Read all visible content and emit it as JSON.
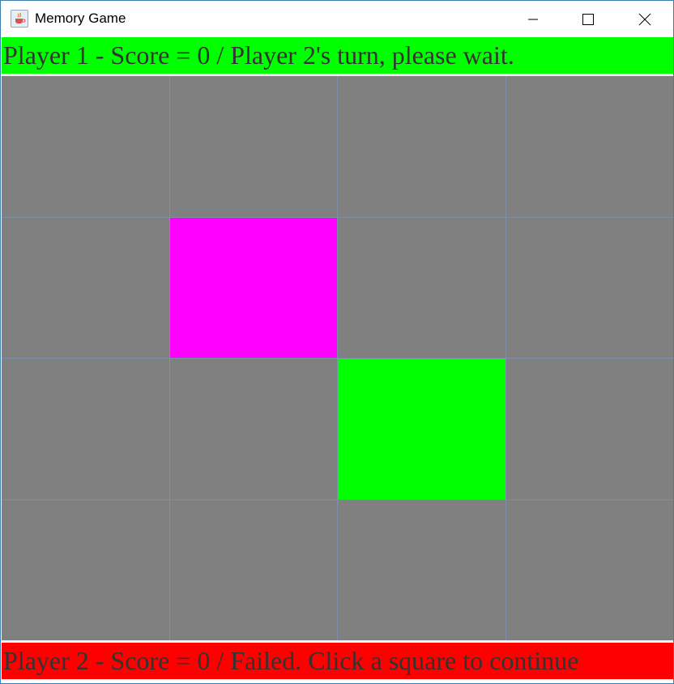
{
  "window": {
    "title": "Memory Game",
    "icon": "java-cup-icon",
    "controls": [
      "minimize-icon",
      "maximize-icon",
      "close-icon"
    ]
  },
  "status": {
    "top": "Player 1 - Score = 0 / Player 2's turn, please wait.",
    "bottom": "Player 2 - Score = 0 / Failed. Click a square to continue",
    "top_color": "#00ff00",
    "bottom_color": "#ff0000"
  },
  "board": {
    "rows": 4,
    "cols": 4,
    "hidden_color": "#808080",
    "grid_line_color": "#7f8fa8",
    "cells": [
      [
        "hidden",
        "hidden",
        "hidden",
        "hidden"
      ],
      [
        "hidden",
        "#ff00ff",
        "hidden",
        "hidden"
      ],
      [
        "hidden",
        "hidden",
        "#00ff00",
        "hidden"
      ],
      [
        "hidden",
        "hidden",
        "hidden",
        "hidden"
      ]
    ]
  }
}
